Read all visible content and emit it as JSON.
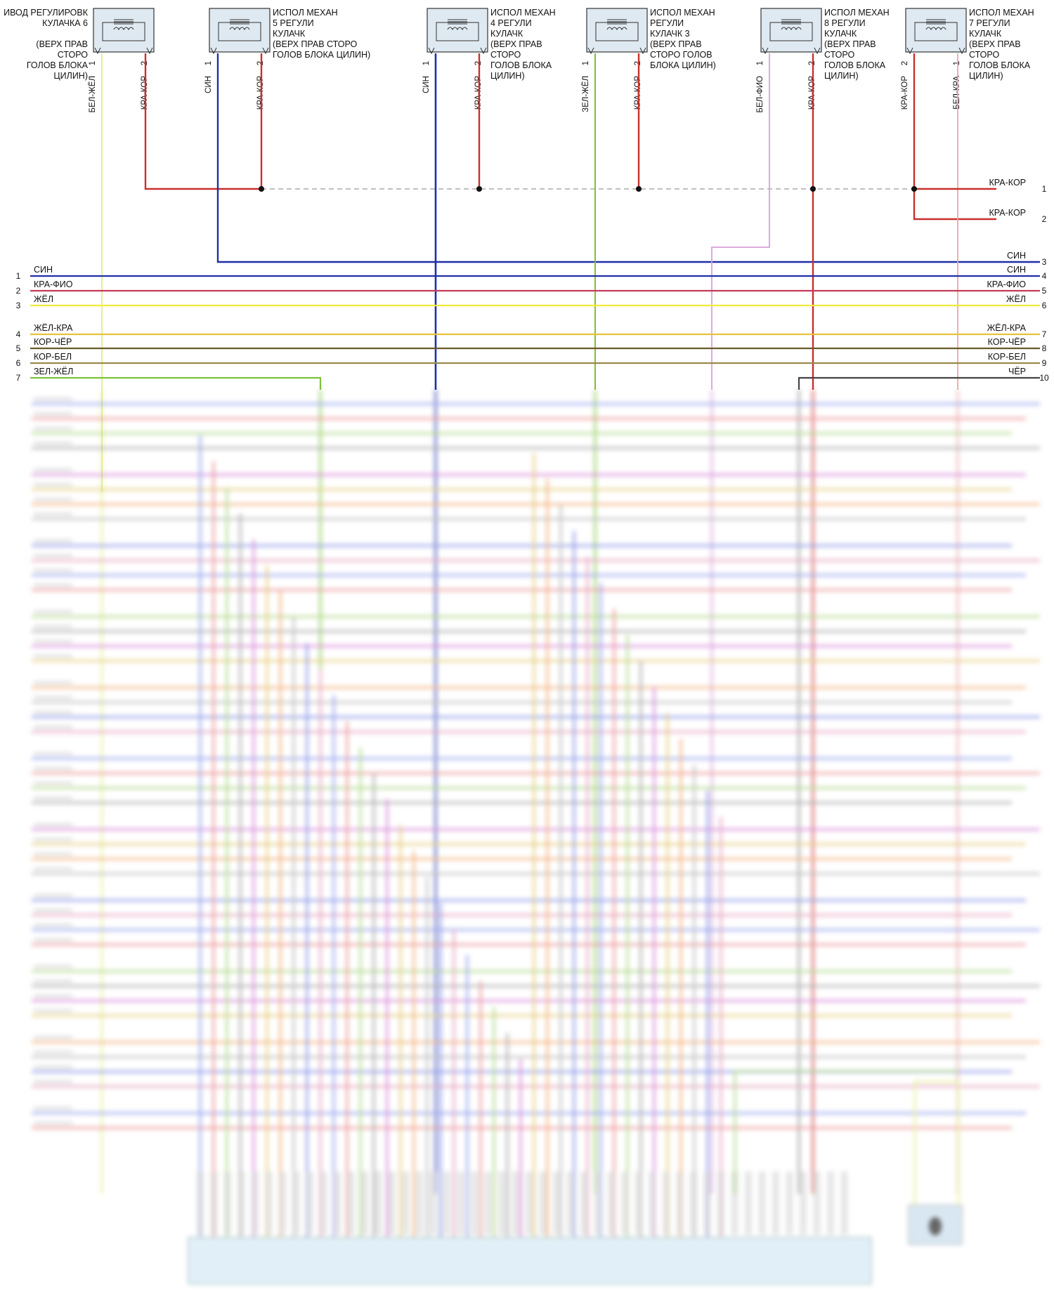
{
  "components": [
    {
      "id": "cam6",
      "lines": [
        "ИВОД РЕГУЛИРОВК",
        "КУЛАЧКА 6",
        "",
        "(ВЕРХ ПРАВ",
        "СТОРО",
        "ГОЛОВ БЛОКА",
        "ЦИЛИН)"
      ],
      "label_align": "left-of-box",
      "pins": [
        {
          "n": "1",
          "wire": "БЕЛ-ЖЁЛ",
          "color": "#e4ec8c"
        },
        {
          "n": "2",
          "wire": "КРА-КОР",
          "color": "#c9302c"
        }
      ]
    },
    {
      "id": "cam5",
      "lines": [
        "ИСПОЛ МЕХАН",
        "5 РЕГУЛИ",
        "КУЛАЧК",
        "(ВЕРХ ПРАВ СТОРО",
        "ГОЛОВ БЛОКА ЦИЛИН)"
      ],
      "label_align": "right-of-box",
      "pins": [
        {
          "n": "1",
          "wire": "СИН",
          "color": "#1f2fa8"
        },
        {
          "n": "2",
          "wire": "КРА-КОР",
          "color": "#c9302c"
        }
      ]
    },
    {
      "id": "cam4",
      "lines": [
        "ИСПОЛ МЕХАН",
        "4 РЕГУЛИ",
        "КУЛАЧК",
        "(ВЕРХ ПРАВ",
        "СТОРО",
        "ГОЛОВ БЛОКА",
        "ЦИЛИН)"
      ],
      "label_align": "right-of-box",
      "pins": [
        {
          "n": "1",
          "wire": "СИН",
          "color": "#1f2fa8"
        },
        {
          "n": "2",
          "wire": "КРА-КОР",
          "color": "#c9302c"
        }
      ]
    },
    {
      "id": "cam3",
      "lines": [
        "ИСПОЛ МЕХАН",
        "РЕГУЛИ",
        "КУЛАЧК 3",
        "(ВЕРХ ПРАВ",
        "СТОРО ГОЛОВ",
        "БЛОКА ЦИЛИН)"
      ],
      "label_align": "right-of-box",
      "pins": [
        {
          "n": "1",
          "wire": "ЗЕЛ-ЖЁЛ",
          "color": "#7cc13a"
        },
        {
          "n": "2",
          "wire": "КРА-КОР",
          "color": "#c9302c"
        }
      ]
    },
    {
      "id": "cam8",
      "lines": [
        "ИСПОЛ МЕХАН",
        "8 РЕГУЛИ",
        "КУЛАЧК",
        "(ВЕРХ ПРАВ",
        "СТОРО",
        "ГОЛОВ БЛОКА",
        "ЦИЛИН)"
      ],
      "label_align": "right-of-box",
      "pins": [
        {
          "n": "1",
          "wire": "БЕЛ-ФИО",
          "color": "#d8a0dc"
        },
        {
          "n": "2",
          "wire": "КРА-КОР",
          "color": "#c9302c"
        }
      ]
    },
    {
      "id": "cam7",
      "lines": [
        "ИСПОЛ МЕХАН",
        "7 РЕГУЛИ",
        "КУЛАЧК",
        "(ВЕРХ ПРАВ",
        "СТОРО",
        "ГОЛОВ БЛОКА",
        "ЦИЛИН)"
      ],
      "label_align": "right-of-box",
      "pins": [
        {
          "n": "2",
          "wire": "КРА-КОР",
          "color": "#c9302c"
        },
        {
          "n": "1",
          "wire": "БЕЛ-КРА",
          "color": "#e8a8a8"
        }
      ]
    }
  ],
  "right_labels": [
    {
      "n": "1",
      "text": "КРА-КОР",
      "color": "#c9302c"
    },
    {
      "n": "2",
      "text": "КРА-КОР",
      "color": "#c9302c"
    },
    {
      "n": "3",
      "text": "СИН",
      "color": "#1f2fa8"
    },
    {
      "n": "4",
      "text": "СИН",
      "color": "#1f2fa8"
    },
    {
      "n": "5",
      "text": "КРА-ФИО",
      "color": "#c43a5a"
    },
    {
      "n": "6",
      "text": "ЖЁЛ",
      "color": "#f2ea3a"
    },
    {
      "n": "7",
      "text": "ЖЁЛ-КРА",
      "color": "#e6c23a"
    },
    {
      "n": "8",
      "text": "КОР-ЧЁР",
      "color": "#6a5a2a"
    },
    {
      "n": "9",
      "text": "КОР-БЕЛ",
      "color": "#9a8a4a"
    },
    {
      "n": "10",
      "text": "ЧЁР",
      "color": "#444444"
    }
  ],
  "left_labels": [
    {
      "n": "1",
      "text": "СИН",
      "color": "#1f2fa8"
    },
    {
      "n": "2",
      "text": "КРА-ФИО",
      "color": "#c43a5a"
    },
    {
      "n": "3",
      "text": "ЖЁЛ",
      "color": "#f2ea3a"
    },
    {
      "n": "4",
      "text": "ЖЁЛ-КРА",
      "color": "#e6c23a"
    },
    {
      "n": "5",
      "text": "КОР-ЧЁР",
      "color": "#6a5a2a"
    },
    {
      "n": "6",
      "text": "КОР-БЕЛ",
      "color": "#9a8a4a"
    },
    {
      "n": "7",
      "text": "ЗЕЛ-ЖЁЛ",
      "color": "#7cc13a"
    }
  ],
  "colors": {
    "red": "#c9302c",
    "blue": "#1f2fa8",
    "green": "#7cc13a",
    "yellow": "#f2ea3a",
    "pink": "#e070e0",
    "violet": "#d8a0dc",
    "gray": "#8a8a8a",
    "orange": "#f0a060",
    "olive": "#b8b070",
    "lightblue": "#8090e8",
    "dark": "#444444"
  }
}
